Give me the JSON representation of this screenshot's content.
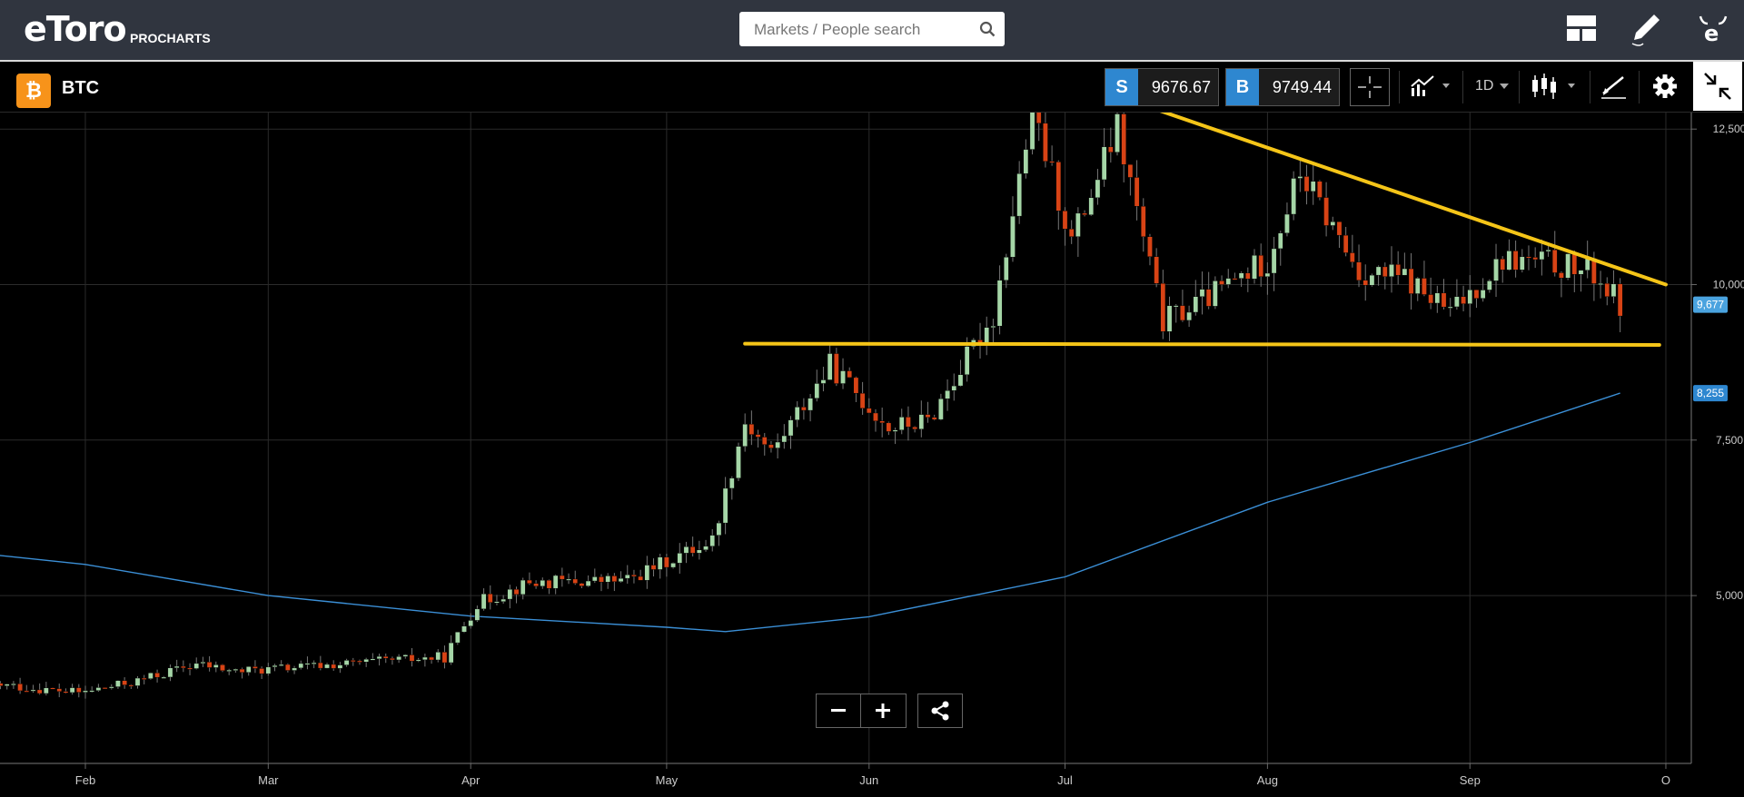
{
  "header": {
    "logo_text": "eToro",
    "logo_sub": "PROCHARTS",
    "search_placeholder": "Markets / People search"
  },
  "toolbar": {
    "symbol_badge": "₿",
    "symbol": "BTC",
    "sell_tag": "S",
    "sell_price": "9676.67",
    "buy_tag": "B",
    "buy_price": "9749.44",
    "timeframe": "1D"
  },
  "colors": {
    "up": "#a5d6a7",
    "down": "#d84315",
    "trendline": "#f5c518",
    "ma": "#3b8fd6",
    "accent": "#2e87d0"
  },
  "chart_data": {
    "type": "candlestick",
    "symbol": "BTC",
    "x_tick_labels": [
      "Feb",
      "Mar",
      "Apr",
      "May",
      "Jun",
      "Jul",
      "Aug",
      "Sep",
      "O"
    ],
    "y_tick_labels": [
      "12,500",
      "10,000",
      "7,500",
      "5,000"
    ],
    "y_ticks": [
      12500,
      10000,
      7500,
      5000
    ],
    "ylim": [
      3300,
      13800
    ],
    "last_price_label": "9,677",
    "last_price": 9677,
    "ma_label": "8,255",
    "ma_value": 8255,
    "period": {
      "start": "2019-01-11",
      "end": "2019-09-24"
    },
    "months": [
      {
        "label": "Feb",
        "date": "2019-02-01"
      },
      {
        "label": "Mar",
        "date": "2019-03-01"
      },
      {
        "label": "Apr",
        "date": "2019-04-01"
      },
      {
        "label": "May",
        "date": "2019-05-01"
      },
      {
        "label": "Jun",
        "date": "2019-06-01"
      },
      {
        "label": "Jul",
        "date": "2019-07-01"
      },
      {
        "label": "Aug",
        "date": "2019-08-01"
      },
      {
        "label": "Sep",
        "date": "2019-09-01"
      },
      {
        "label": "O",
        "date": "2019-10-01"
      }
    ],
    "close_series": [
      [
        "2019-01-11",
        3620
      ],
      [
        "2019-01-20",
        3550
      ],
      [
        "2019-01-31",
        3440
      ],
      [
        "2019-02-08",
        3600
      ],
      [
        "2019-02-18",
        3900
      ],
      [
        "2019-02-24",
        3780
      ],
      [
        "2019-03-10",
        3880
      ],
      [
        "2019-03-28",
        4010
      ],
      [
        "2019-04-02",
        4880
      ],
      [
        "2019-04-10",
        5200
      ],
      [
        "2019-04-25",
        5250
      ],
      [
        "2019-05-08",
        5900
      ],
      [
        "2019-05-13",
        7800
      ],
      [
        "2019-05-17",
        7300
      ],
      [
        "2019-05-26",
        8700
      ],
      [
        "2019-06-04",
        7700
      ],
      [
        "2019-06-10",
        7800
      ],
      [
        "2019-06-20",
        9500
      ],
      [
        "2019-06-26",
        12800
      ],
      [
        "2019-07-02",
        10700
      ],
      [
        "2019-07-09",
        12500
      ],
      [
        "2019-07-16",
        9400
      ],
      [
        "2019-07-23",
        9800
      ],
      [
        "2019-08-01",
        10400
      ],
      [
        "2019-08-06",
        11800
      ],
      [
        "2019-08-15",
        10200
      ],
      [
        "2019-08-22",
        10100
      ],
      [
        "2019-08-29",
        9550
      ],
      [
        "2019-09-06",
        10400
      ],
      [
        "2019-09-13",
        10350
      ],
      [
        "2019-09-20",
        10170
      ],
      [
        "2019-09-24",
        9677
      ]
    ],
    "moving_average": [
      [
        "2019-01-01",
        5840
      ],
      [
        "2019-02-01",
        5500
      ],
      [
        "2019-03-01",
        5000
      ],
      [
        "2019-04-01",
        4670
      ],
      [
        "2019-05-01",
        4490
      ],
      [
        "2019-05-10",
        4420
      ],
      [
        "2019-06-01",
        4660
      ],
      [
        "2019-07-01",
        5300
      ],
      [
        "2019-08-01",
        6500
      ],
      [
        "2019-09-01",
        7460
      ],
      [
        "2019-09-24",
        8255
      ]
    ],
    "trendlines": [
      {
        "kind": "descending resistance",
        "from": [
          "2019-06-26",
          13500
        ],
        "to": [
          "2019-10-01",
          10000
        ]
      },
      {
        "kind": "horizontal support",
        "from": [
          "2019-05-13",
          9050
        ],
        "to": [
          "2019-09-30",
          9030
        ]
      }
    ]
  }
}
